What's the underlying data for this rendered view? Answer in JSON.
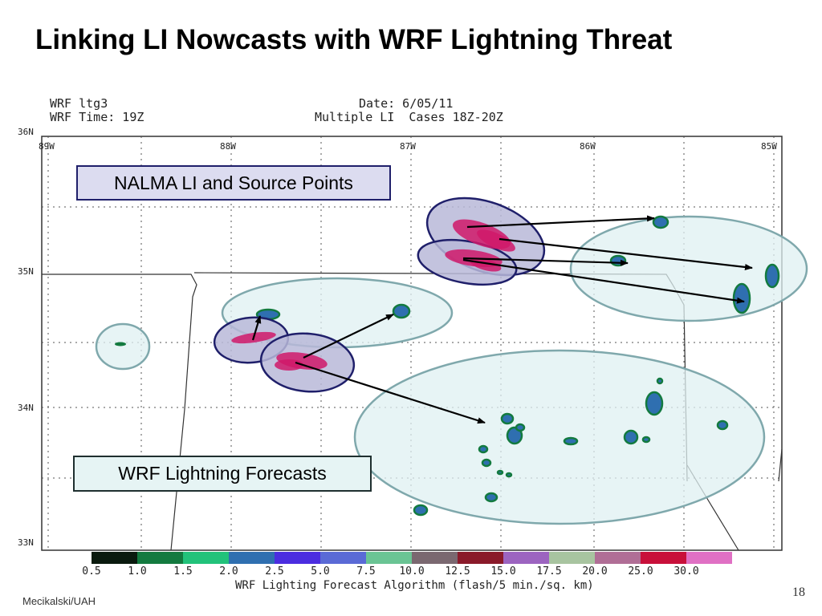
{
  "slide_title": "Linking LI Nowcasts with WRF Lightning Threat",
  "map_header": {
    "left_line1": "WRF ltg3",
    "left_line2": "WRF Time: 19Z",
    "right_line1": "Date: 6/05/11",
    "right_line2": "Multiple LI  Cases 18Z-20Z"
  },
  "lat_labels": [
    "36N",
    "35N",
    "34N",
    "33N"
  ],
  "lon_labels": [
    "89W",
    "88W",
    "87W",
    "86W",
    "85W"
  ],
  "callouts": {
    "nalma": "NALMA LI and Source Points",
    "wrf": "WRF Lightning Forecasts"
  },
  "colorbar": {
    "title": "WRF Lighting Forecast Algorithm (flash/5 min./sq. km)",
    "labels": [
      "0.5",
      "1.0",
      "1.5",
      "2.0",
      "2.5",
      "5.0",
      "7.5",
      "10.0",
      "12.5",
      "15.0",
      "17.5",
      "20.0",
      "25.0",
      "30.0"
    ],
    "colors": [
      "#0a1a0e",
      "#137a3f",
      "#22c27a",
      "#2f6fb0",
      "#4b2de0",
      "#5a6ad6",
      "#6ac494",
      "#7a6870",
      "#8a1a2a",
      "#9c64c0",
      "#a8c4a0",
      "#b06e96",
      "#c8103a",
      "#e070c4"
    ]
  },
  "footer": "Mecikalski/UAH",
  "page_number": "18"
}
